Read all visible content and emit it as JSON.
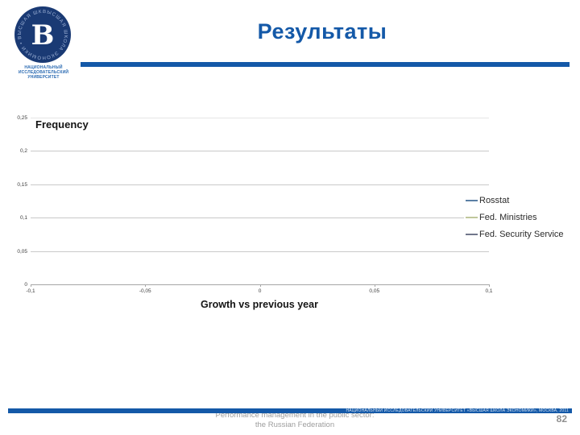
{
  "slide": {
    "title": "Результаты",
    "page_number": "82",
    "logo": {
      "ring_text": "ВЫСШАЯ ШКОЛА ЭКОНОМИКИ • ВЫСШАЯ ШКОЛА ЭКОНОМИКИ •",
      "monogram": "В",
      "caption_line1": "НАЦИОНАЛЬНЫЙ ИССЛЕДОВАТЕЛЬСКИЙ",
      "caption_line2": "УНИВЕРСИТЕТ"
    },
    "footer": {
      "caption_line1": "Performance management in the public sector:",
      "caption_line2": "the Russian Federation",
      "bar_text": "НАЦИОНАЛЬНЫЙ ИССЛЕДОВАТЕЛЬСКИЙ УНИВЕРСИТЕТ «ВЫСШАЯ ШКОЛА ЭКОНОМИКИ», МОСКВА, 2011"
    },
    "colors": {
      "brand_blue": "#1459a8",
      "logo_navy": "#1a3a74"
    }
  },
  "chart_data": {
    "type": "line",
    "title": "",
    "ylabel": "Frequency",
    "xlabel": "Growth vs previous year",
    "ylim": [
      0,
      0.25
    ],
    "xlim": [
      -0.1,
      0.1
    ],
    "grid": "horizontal",
    "legend_position": "right",
    "grid_color": "#c9c9c9",
    "top_grid_color": "#e6e6e6",
    "axis_color": "#a6a6a6",
    "y_tick_values": [
      0,
      0.05,
      0.1,
      0.15,
      0.2,
      0.25
    ],
    "y_tick_labels": [
      "0",
      "0,05",
      "0,1",
      "0,15",
      "0,2",
      "0,25"
    ],
    "x_tick_values": [
      -0.1,
      -0.05,
      0,
      0.05,
      0.1
    ],
    "x_tick_labels": [
      "-0,1",
      "-0,05",
      "0",
      "0,05",
      "0,1"
    ],
    "series": [
      {
        "name": "Rosstat",
        "color": "#5b80a5",
        "values": []
      },
      {
        "name": "Fed. Ministries",
        "color": "#c0c79b",
        "values": []
      },
      {
        "name": "Fed. Security Service",
        "color": "#71768b",
        "values": []
      }
    ]
  }
}
